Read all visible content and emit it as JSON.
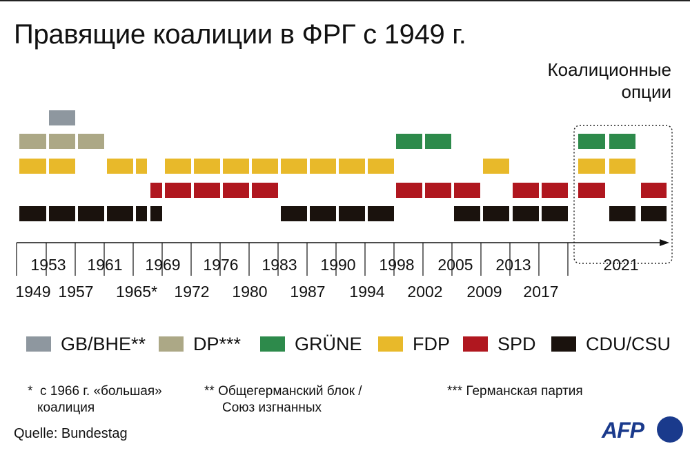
{
  "title": "Правящие коалиции в ФРГ с 1949 г.",
  "options_label": [
    "Коалиционные",
    "опции"
  ],
  "colors": {
    "GB/BHE": "#8e979f",
    "DP": "#aca886",
    "GRUENE": "#2d8a4b",
    "FDP": "#e8b92a",
    "SPD": "#b0171f",
    "CDU/CSU": "#1a120d"
  },
  "chart_data": {
    "type": "timeline",
    "title": "Правящие коалиции в ФРГ с 1949 г.",
    "tick_labels_upper": [
      "1953",
      "1961",
      "1969",
      "1976",
      "1983",
      "1990",
      "1998",
      "2005",
      "2013",
      "2021"
    ],
    "tick_labels_lower": [
      "1949",
      "1957",
      "1965*",
      "1972",
      "1980",
      "1987",
      "1994",
      "2002",
      "2009",
      "2017"
    ],
    "rows": [
      "GB/BHE",
      "DP",
      "GRUENE",
      "FDP",
      "SPD",
      "CDU/CSU"
    ],
    "segments": [
      {
        "party": "GB/BHE",
        "term": "1953"
      },
      {
        "party": "DP",
        "term": "1949"
      },
      {
        "party": "DP",
        "term": "1953"
      },
      {
        "party": "DP",
        "term": "1957"
      },
      {
        "party": "GRUENE",
        "term": "1998"
      },
      {
        "party": "GRUENE",
        "term": "2002"
      },
      {
        "party": "GRUENE",
        "term": "2021",
        "option": true
      },
      {
        "party": "GRUENE",
        "term": "2021 b",
        "option": true
      },
      {
        "party": "FDP",
        "term": "1949"
      },
      {
        "party": "FDP",
        "term": "1953"
      },
      {
        "party": "FDP",
        "term": "1961"
      },
      {
        "party": "FDP",
        "term": "1965"
      },
      {
        "party": "FDP",
        "term": "1969"
      },
      {
        "party": "FDP",
        "term": "1972"
      },
      {
        "party": "FDP",
        "term": "1976"
      },
      {
        "party": "FDP",
        "term": "1980"
      },
      {
        "party": "FDP",
        "term": "1983"
      },
      {
        "party": "FDP",
        "term": "1987"
      },
      {
        "party": "FDP",
        "term": "1990"
      },
      {
        "party": "FDP",
        "term": "1994"
      },
      {
        "party": "FDP",
        "term": "2009"
      },
      {
        "party": "FDP",
        "term": "2021",
        "option": true
      },
      {
        "party": "FDP",
        "term": "2021 b",
        "option": true
      },
      {
        "party": "SPD",
        "term": "1966"
      },
      {
        "party": "SPD",
        "term": "1969"
      },
      {
        "party": "SPD",
        "term": "1972"
      },
      {
        "party": "SPD",
        "term": "1976"
      },
      {
        "party": "SPD",
        "term": "1980"
      },
      {
        "party": "SPD",
        "term": "1998"
      },
      {
        "party": "SPD",
        "term": "2002"
      },
      {
        "party": "SPD",
        "term": "2005"
      },
      {
        "party": "SPD",
        "term": "2013"
      },
      {
        "party": "SPD",
        "term": "2017"
      },
      {
        "party": "SPD",
        "term": "2021",
        "option": true
      },
      {
        "party": "SPD",
        "term": "2021 b",
        "option": true
      },
      {
        "party": "CDU/CSU",
        "term": "1949"
      },
      {
        "party": "CDU/CSU",
        "term": "1953"
      },
      {
        "party": "CDU/CSU",
        "term": "1957"
      },
      {
        "party": "CDU/CSU",
        "term": "1961"
      },
      {
        "party": "CDU/CSU",
        "term": "1965"
      },
      {
        "party": "CDU/CSU",
        "term": "1966"
      },
      {
        "party": "CDU/CSU",
        "term": "1983"
      },
      {
        "party": "CDU/CSU",
        "term": "1987"
      },
      {
        "party": "CDU/CSU",
        "term": "1990"
      },
      {
        "party": "CDU/CSU",
        "term": "1994"
      },
      {
        "party": "CDU/CSU",
        "term": "2005"
      },
      {
        "party": "CDU/CSU",
        "term": "2009"
      },
      {
        "party": "CDU/CSU",
        "term": "2013"
      },
      {
        "party": "CDU/CSU",
        "term": "2017"
      },
      {
        "party": "CDU/CSU",
        "term": "2021",
        "option": true
      },
      {
        "party": "CDU/CSU",
        "term": "2021 b",
        "option": true
      }
    ]
  },
  "legend": [
    {
      "key": "GB/BHE",
      "label": "GB/BHE**"
    },
    {
      "key": "DP",
      "label": "DP***"
    },
    {
      "key": "GRUENE",
      "label": "GRÜNE"
    },
    {
      "key": "FDP",
      "label": "FDP"
    },
    {
      "key": "SPD",
      "label": "SPD"
    },
    {
      "key": "CDU/CSU",
      "label": "CDU/CSU"
    }
  ],
  "notes": {
    "note1_mark": "*",
    "note1_line1": "с 1966 г. «большая»",
    "note1_line2": "коалиция",
    "note2_line1": "** Общегерманский блок /",
    "note2_line2": "Союз изгнанных",
    "note3": "*** Германская партия"
  },
  "source": "Quelle: Bundestag",
  "logo": "AFP"
}
